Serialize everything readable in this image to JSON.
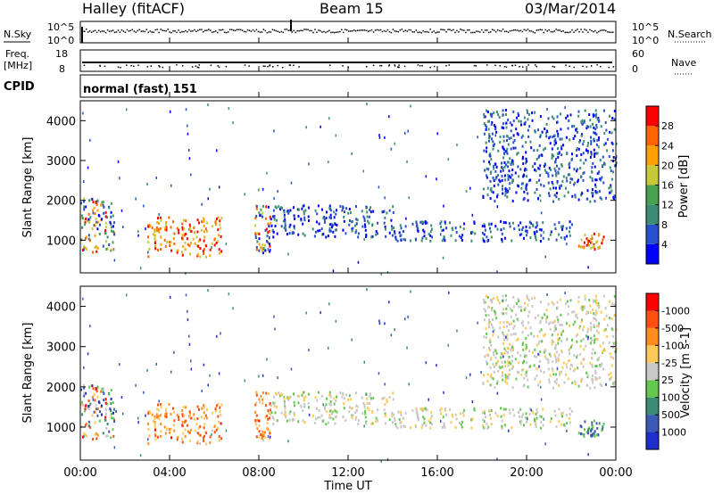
{
  "header": {
    "station": "Halley (fitACF)",
    "beam": "Beam 15",
    "date": "03/Mar/2014"
  },
  "panel_labels": {
    "nsky": "N.Sky",
    "nsearch": "N.Search",
    "freq_line1": "Freq.",
    "freq_line2": "[MHz]",
    "nave": "Nave",
    "cpid": "CPID",
    "cpid_value": "normal (fast) 151"
  },
  "noise_axis": {
    "top_left": "10^5",
    "bottom_left": "10^0",
    "top_right": "10^5",
    "bottom_right": "10^0"
  },
  "freq_axis": {
    "left_top": "18",
    "left_bottom": "8",
    "right_top": "60",
    "right_bottom": "0"
  },
  "chart_data": [
    {
      "type": "heatmap",
      "title": "",
      "ylabel": "Slant Range [km]",
      "ylim": [
        180,
        4500
      ],
      "yticks": [
        1000,
        2000,
        3000,
        4000
      ],
      "xlim": [
        0,
        24
      ],
      "colorbar": {
        "label": "Power [dB]",
        "ticks": [
          "4",
          "8",
          "12",
          "16",
          "20",
          "24",
          "28"
        ],
        "range": [
          0,
          30
        ],
        "colors": [
          "#0000ff",
          "#2850c8",
          "#3c8c78",
          "#48a050",
          "#c8c83c",
          "#ffa000",
          "#ff6400",
          "#ff0000"
        ]
      },
      "regions": [
        {
          "x": [
            0.0,
            1.5
          ],
          "y": [
            700,
            2100
          ],
          "level": "mixed"
        },
        {
          "x": [
            3.0,
            6.3
          ],
          "y": [
            600,
            1600
          ],
          "level": "high"
        },
        {
          "x": [
            7.8,
            8.5
          ],
          "y": [
            700,
            1900
          ],
          "level": "mixed"
        },
        {
          "x": [
            8.5,
            14.0
          ],
          "y": [
            1100,
            1900
          ],
          "level": "low"
        },
        {
          "x": [
            14.0,
            22.0
          ],
          "y": [
            1000,
            1500
          ],
          "level": "low"
        },
        {
          "x": [
            18.0,
            24.0
          ],
          "y": [
            2000,
            4300
          ],
          "level": "low"
        },
        {
          "x": [
            22.3,
            23.5
          ],
          "y": [
            800,
            1200
          ],
          "level": "high"
        }
      ]
    },
    {
      "type": "heatmap",
      "title": "",
      "ylabel": "Slant Range [km]",
      "ylim": [
        180,
        4500
      ],
      "yticks": [
        1000,
        2000,
        3000,
        4000
      ],
      "xlim": [
        0,
        24
      ],
      "xlabel": "Time UT",
      "xticks": [
        "00:00",
        "04:00",
        "08:00",
        "12:00",
        "16:00",
        "20:00",
        "00:00"
      ],
      "colorbar": {
        "label": "Velocity [m s-1]",
        "ticks": [
          "1000",
          "500",
          "100",
          "25",
          "-25",
          "-100",
          "-500",
          "-1000"
        ],
        "colors": [
          "#1e2ec8",
          "#3c5ab4",
          "#3c8c78",
          "#64c850",
          "#c8c8c8",
          "#ffc85a",
          "#ff8c1e",
          "#ff5014",
          "#ff0000"
        ]
      },
      "regions": [
        {
          "x": [
            0.0,
            1.5
          ],
          "y": [
            700,
            2100
          ],
          "level": "mixed"
        },
        {
          "x": [
            3.0,
            6.3
          ],
          "y": [
            600,
            1600
          ],
          "level": "negative"
        },
        {
          "x": [
            7.8,
            8.5
          ],
          "y": [
            700,
            1900
          ],
          "level": "negative"
        },
        {
          "x": [
            8.5,
            14.0
          ],
          "y": [
            1100,
            1900
          ],
          "level": "near-zero"
        },
        {
          "x": [
            14.0,
            22.0
          ],
          "y": [
            1000,
            1500
          ],
          "level": "near-zero"
        },
        {
          "x": [
            18.0,
            24.0
          ],
          "y": [
            2000,
            4300
          ],
          "level": "near-zero"
        },
        {
          "x": [
            22.3,
            23.5
          ],
          "y": [
            800,
            1200
          ],
          "level": "positive"
        }
      ]
    }
  ]
}
